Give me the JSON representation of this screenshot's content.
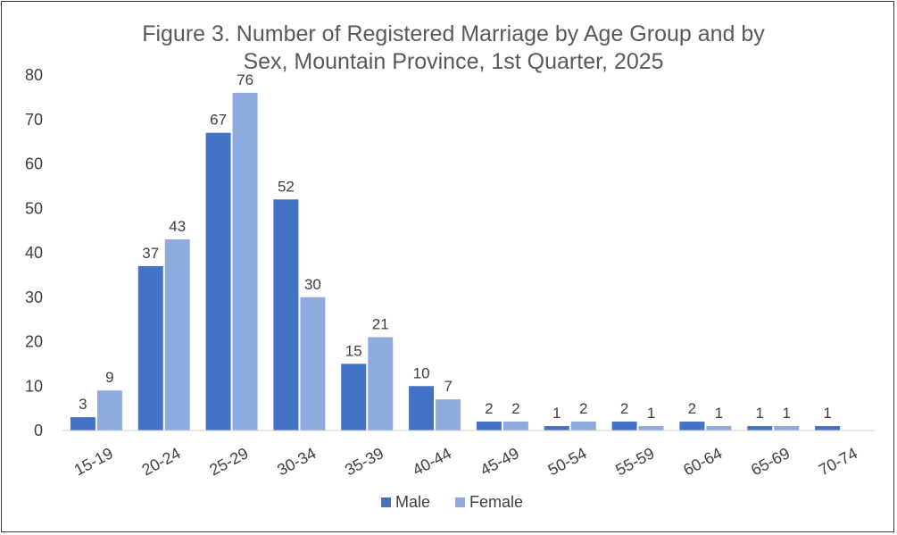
{
  "chart_data": {
    "type": "bar",
    "title_line1": "Figure 3. Number of Registered Marriage by Age Group and by",
    "title_line2": "Sex, Mountain Province, 1st Quarter, 2025",
    "categories": [
      "15-19",
      "20-24",
      "25-29",
      "30-34",
      "35-39",
      "40-44",
      "45-49",
      "50-54",
      "55-59",
      "60-64",
      "65-69",
      "70-74"
    ],
    "series": [
      {
        "name": "Male",
        "color": "#4472C4",
        "values": [
          3,
          37,
          67,
          52,
          15,
          10,
          2,
          1,
          2,
          2,
          1,
          1
        ]
      },
      {
        "name": "Female",
        "color": "#8FAADC",
        "values": [
          9,
          43,
          76,
          30,
          21,
          7,
          2,
          2,
          1,
          1,
          1,
          null
        ]
      }
    ],
    "ylim": [
      0,
      80
    ],
    "yticks": [
      0,
      10,
      20,
      30,
      40,
      50,
      60,
      70,
      80
    ],
    "grid": false,
    "legend_position": "bottom"
  }
}
